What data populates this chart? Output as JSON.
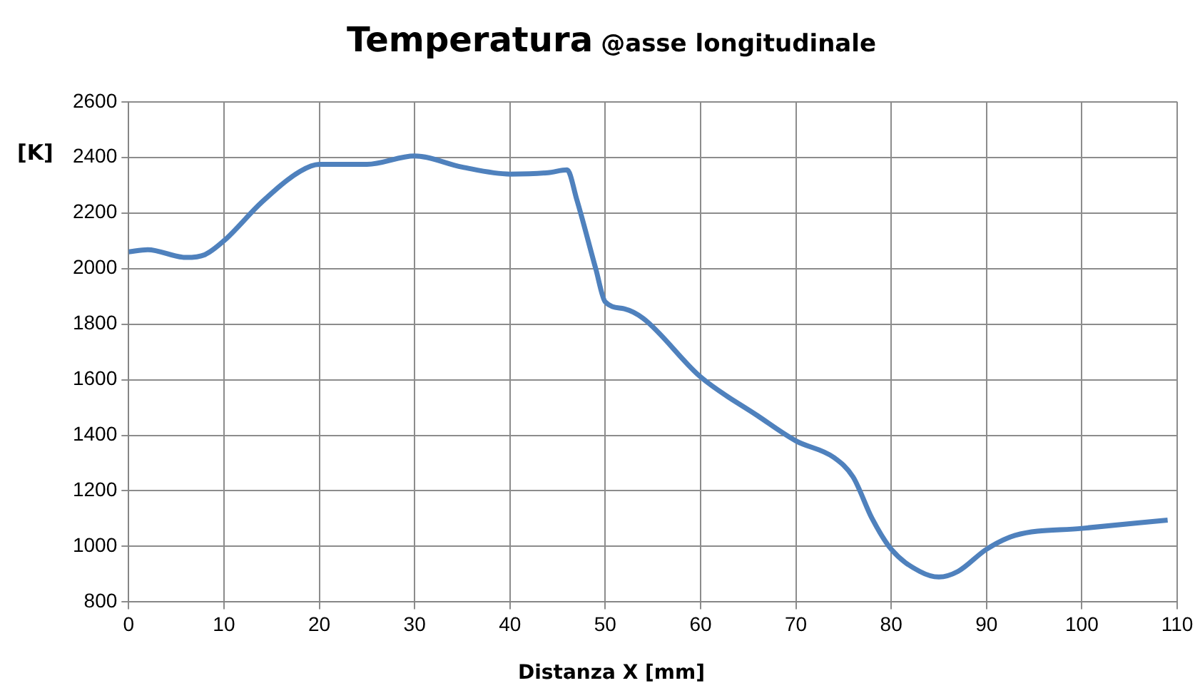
{
  "chart_data": {
    "type": "line",
    "title": "Temperatura",
    "subtitle": "@asse longitudinale",
    "xlabel": "Distanza X [mm]",
    "ylabel": "[K]",
    "x": [
      0,
      2,
      6,
      8,
      10,
      14,
      18,
      20,
      25,
      30,
      35,
      40,
      44,
      46,
      47,
      49,
      50,
      52,
      54,
      60,
      66,
      70,
      74,
      76,
      78,
      80,
      83,
      85,
      87,
      90,
      93,
      100,
      109
    ],
    "series": [
      {
        "color": "#4f81bd",
        "values": [
          2060,
          2068,
          2040,
          2050,
          2100,
          2240,
          2350,
          2375,
          2375,
          2405,
          2365,
          2340,
          2345,
          2355,
          2250,
          2000,
          1880,
          1855,
          1820,
          1610,
          1470,
          1380,
          1320,
          1250,
          1100,
          990,
          910,
          890,
          910,
          990,
          1040,
          1065,
          1095
        ]
      }
    ],
    "xlim": [
      0,
      110
    ],
    "xticks": [
      0,
      10,
      20,
      30,
      40,
      50,
      60,
      70,
      80,
      90,
      100,
      110
    ],
    "ylim": [
      800,
      2600
    ],
    "yticks": [
      800,
      1000,
      1200,
      1400,
      1600,
      1800,
      2000,
      2200,
      2400,
      2600
    ],
    "grid": true,
    "line_style": "solid",
    "marker": "none",
    "legend": false
  }
}
